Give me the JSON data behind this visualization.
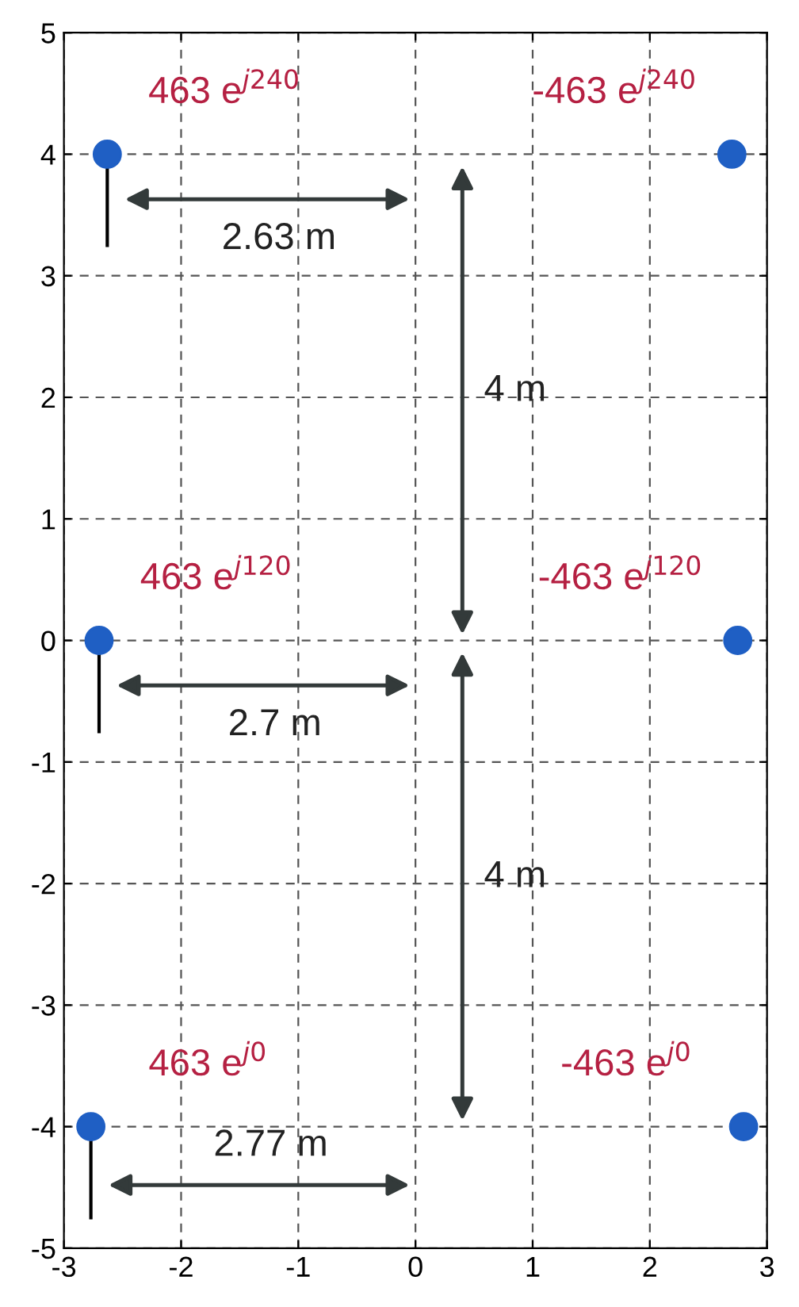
{
  "chart_data": {
    "type": "scatter",
    "xlim": [
      -3,
      3
    ],
    "ylim": [
      -5,
      5
    ],
    "xticks": [
      -3,
      -2,
      -1,
      0,
      1,
      2,
      3
    ],
    "yticks": [
      -5,
      -4,
      -3,
      -2,
      -1,
      0,
      1,
      2,
      3,
      4,
      5
    ],
    "grid": true,
    "marker": "circle",
    "series": [
      {
        "color": "#1f5fc4",
        "x": [
          -2.63,
          -2.7,
          -2.77,
          2.7,
          2.75,
          2.8
        ],
        "values": [
          4,
          0,
          -4,
          4,
          0,
          -4
        ]
      }
    ],
    "annotations": [
      {
        "text": "463 e$^{j240}$",
        "x": -2.63,
        "y": 4
      },
      {
        "text": "463 e$^{j120}$",
        "x": -2.7,
        "y": 0
      },
      {
        "text": "463 e$^{j0}$",
        "x": -2.77,
        "y": -4
      },
      {
        "text": "-463 e$^{j240}$",
        "x": 2.7,
        "y": 4
      },
      {
        "text": "-463 e$^{j120}$",
        "x": 2.75,
        "y": 0
      },
      {
        "text": "-463 e$^{j0}$",
        "x": 2.8,
        "y": -4
      },
      "2.63 m",
      "2.7 m",
      "2.77 m",
      "4 m",
      "4 m"
    ]
  }
}
